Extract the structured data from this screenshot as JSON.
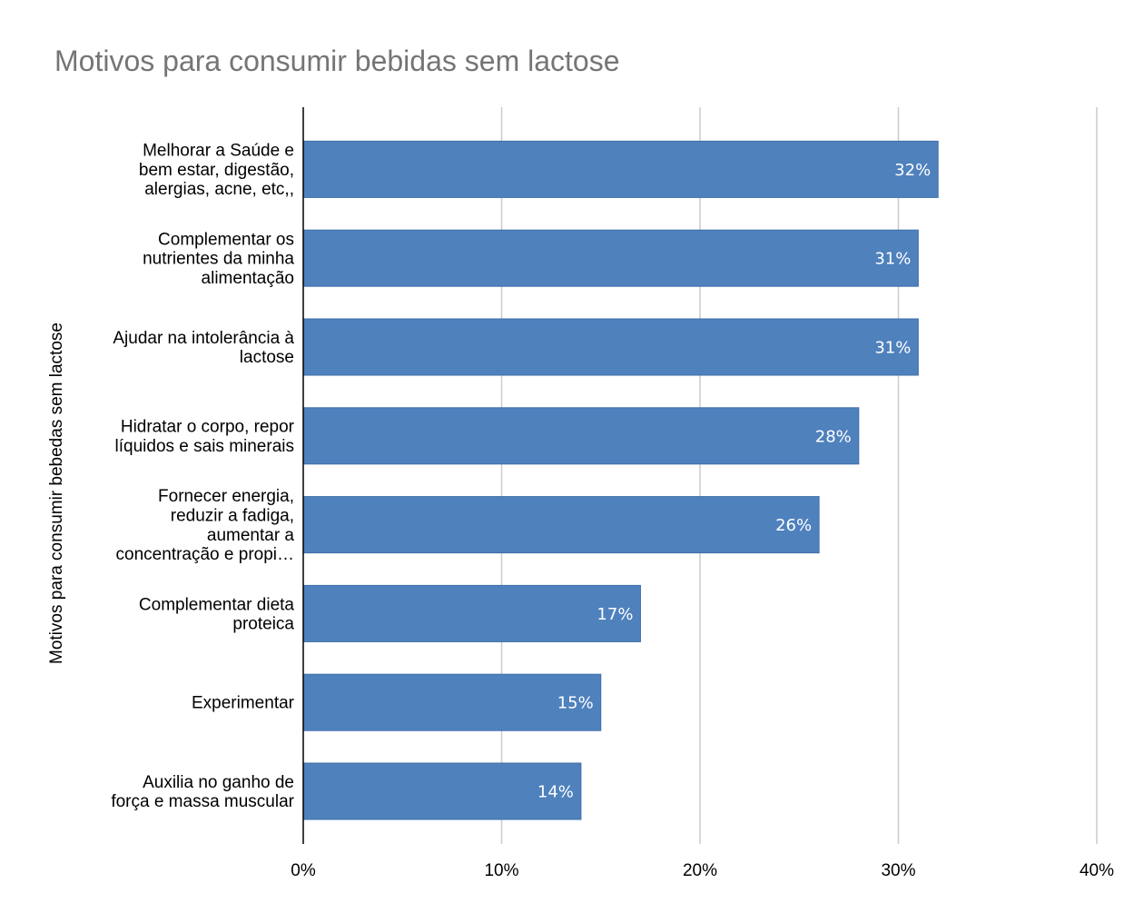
{
  "chart_data": {
    "type": "bar",
    "orientation": "horizontal",
    "title": "Motivos para consumir bebidas sem lactose",
    "xlabel": "",
    "ylabel": "Motivos para consumir bebedas sem lactose",
    "categories": [
      [
        "Melhorar a Saúde e",
        "bem estar, digestão,",
        "alergias, acne, etc,,"
      ],
      [
        "Complementar os",
        "nutrientes da minha",
        "alimentação"
      ],
      [
        "Ajudar na intolerância à",
        "lactose"
      ],
      [
        "Hidratar o corpo, repor",
        "líquidos e sais minerais"
      ],
      [
        "Fornecer energia,",
        "reduzir a fadiga,",
        "aumentar a",
        "concentração e propi…"
      ],
      [
        "Complementar dieta",
        "proteica"
      ],
      [
        "Experimentar"
      ],
      [
        "Auxilia no ganho de",
        "força e massa muscular"
      ]
    ],
    "values": [
      32,
      31,
      31,
      28,
      26,
      17,
      15,
      14
    ],
    "data_labels": [
      "32%",
      "31%",
      "31%",
      "28%",
      "26%",
      "17%",
      "15%",
      "14%"
    ],
    "xlim": [
      0,
      40
    ],
    "xticks": [
      0,
      10,
      20,
      30,
      40
    ],
    "xtick_labels": [
      "0%",
      "10%",
      "20%",
      "30%",
      "40%"
    ],
    "grid": "vertical",
    "legend": "none",
    "colors": {
      "bar": "#4f81bd",
      "bar_border": "#3e6ea8",
      "grid": "#cccccc",
      "axis": "#000000",
      "title": "#757575",
      "data_label": "#ffffff"
    }
  }
}
